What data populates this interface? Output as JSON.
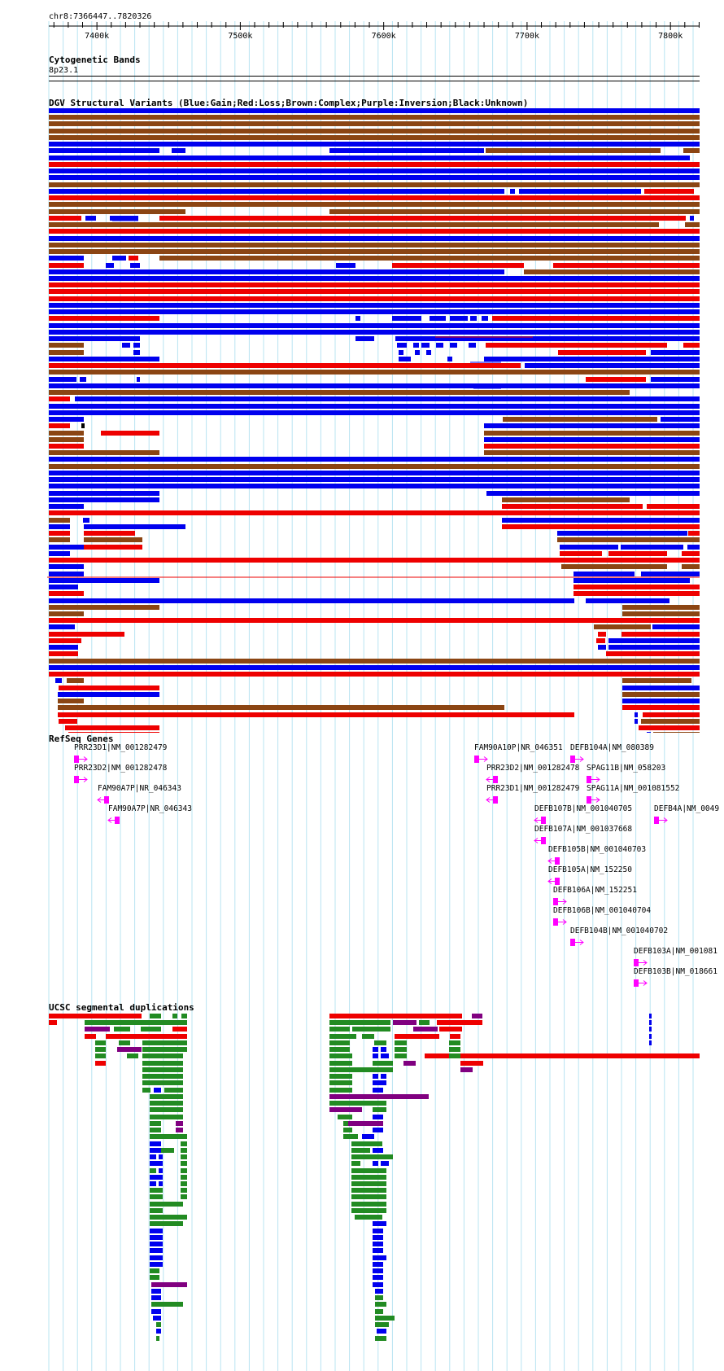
{
  "position": {
    "label": "chr8:7366447..7820326"
  },
  "ruler": {
    "range": [
      7366447,
      7820326
    ],
    "ticks": [
      {
        "pos": 7400000,
        "label": "7400k"
      },
      {
        "pos": 7500000,
        "label": "7500k"
      },
      {
        "pos": 7600000,
        "label": "7600k"
      },
      {
        "pos": 7700000,
        "label": "7700k"
      },
      {
        "pos": 7800000,
        "label": "7800k"
      }
    ]
  },
  "tracks": {
    "cytoband": {
      "title": "Cytogenetic Bands",
      "band": "8p23.1"
    },
    "dgv": {
      "title": "DGV Structural Variants (Blue:Gain;Red:Loss;Brown:Complex;Purple:Inversion;Black:Unknown)",
      "colors": {
        "gain": "#0000ee",
        "loss": "#ee0000",
        "complex": "#8b4513",
        "inversion": "#800080",
        "unknown": "#000000"
      }
    },
    "refseq": {
      "title": "RefSeq Genes",
      "gene_color": "#ff00ff",
      "genes": [
        {
          "label": "PRR23D1|NM_001282479",
          "strand": "+"
        },
        {
          "label": "PRR23D2|NM_001282478",
          "strand": "+"
        },
        {
          "label": "FAM90A7P|NR_046343",
          "strand": "-"
        },
        {
          "label": "FAM90A7P|NR_046343",
          "strand": "-"
        },
        {
          "label": "FAM90A10P|NR_046351",
          "strand": "+"
        },
        {
          "label": "DEFB104A|NM_080389",
          "strand": "+"
        },
        {
          "label": "PRR23D2|NM_001282478",
          "strand": "-"
        },
        {
          "label": "SPAG11B|NM_058203",
          "strand": "+"
        },
        {
          "label": "PRR23D1|NM_001282479",
          "strand": "-"
        },
        {
          "label": "SPAG11A|NM_001081552",
          "strand": "+"
        },
        {
          "label": "DEFB107B|NM_001040705",
          "strand": "-"
        },
        {
          "label": "DEFB4A|NM_0049",
          "strand": "+"
        },
        {
          "label": "DEFB107A|NM_001037668",
          "strand": "-"
        },
        {
          "label": "DEFB105B|NM_001040703",
          "strand": "-"
        },
        {
          "label": "DEFB105A|NM_152250",
          "strand": "-"
        },
        {
          "label": "DEFB106A|NM_152251",
          "strand": "+"
        },
        {
          "label": "DEFB106B|NM_001040704",
          "strand": "+"
        },
        {
          "label": "DEFB104B|NM_001040702",
          "strand": "+"
        },
        {
          "label": "DEFB103A|NM_001081",
          "strand": "+"
        },
        {
          "label": "DEFB103B|NM_018661",
          "strand": "+"
        }
      ]
    },
    "segdup": {
      "title": "UCSC segmental duplications",
      "colors": {
        "red": "#ee0000",
        "green": "#228b22",
        "blue": "#0000ee",
        "purple": "#800080"
      }
    }
  }
}
